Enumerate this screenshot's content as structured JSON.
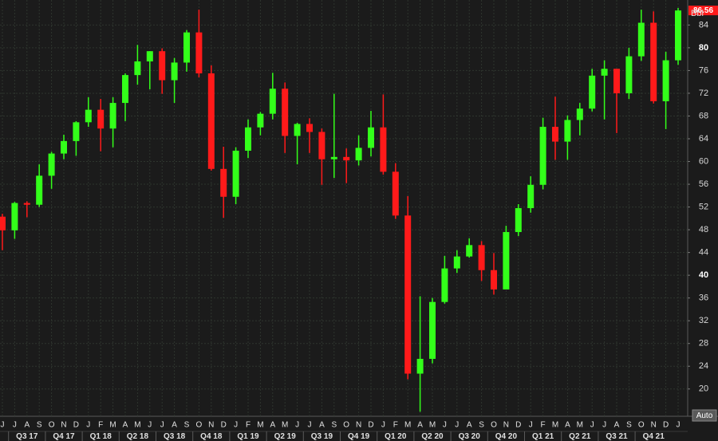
{
  "chart_data": {
    "type": "candlestick",
    "y_unit": "Bbl",
    "auto_button": "Auto",
    "categories": [
      "J",
      "J",
      "A",
      "S",
      "O",
      "N",
      "D",
      "J",
      "F",
      "M",
      "A",
      "M",
      "J",
      "J",
      "A",
      "S",
      "O",
      "N",
      "D",
      "J",
      "F",
      "M",
      "A",
      "M",
      "J",
      "J",
      "A",
      "S",
      "O",
      "N",
      "D",
      "J",
      "F",
      "M",
      "A",
      "M",
      "J",
      "J",
      "A",
      "S",
      "O",
      "N",
      "D",
      "J",
      "F",
      "M",
      "A",
      "M",
      "J",
      "J",
      "A",
      "S",
      "O",
      "N",
      "D",
      "J"
    ],
    "quarter_labels": [
      null,
      "Q3 17",
      null,
      null,
      "Q4 17",
      null,
      null,
      "Q1 18",
      null,
      null,
      "Q2 18",
      null,
      null,
      "Q3 18",
      null,
      null,
      "Q4 18",
      null,
      null,
      "Q1 19",
      null,
      null,
      "Q2 19",
      null,
      null,
      "Q3 19",
      null,
      null,
      "Q4 19",
      null,
      null,
      "Q1 20",
      null,
      null,
      "Q2 20",
      null,
      null,
      "Q3 20",
      null,
      null,
      "Q4 20",
      null,
      null,
      "Q1 21",
      null,
      null,
      "Q2 21",
      null,
      null,
      "Q3 21",
      null,
      null,
      "Q4 21",
      null,
      null,
      null
    ],
    "series": [
      {
        "up_color": "#33ff1a",
        "down_color": "#ff1a1a",
        "open": [
          50.3,
          47.9,
          52.7,
          52.4,
          57.5,
          61.4,
          63.6,
          66.9,
          69.1,
          65.8,
          70.3,
          75.2,
          77.6,
          79.4,
          74.3,
          77.4,
          82.7,
          75.5,
          58.7,
          53.8,
          61.9,
          66.0,
          68.4,
          72.8,
          64.5,
          66.6,
          65.2,
          60.4,
          60.8,
          60.2,
          62.4,
          66.0,
          58.2,
          50.5,
          22.7,
          25.3,
          35.3,
          41.2,
          43.3,
          45.3,
          40.9,
          37.5,
          47.6,
          51.8,
          55.9,
          66.1,
          63.5,
          67.3,
          69.3,
          75.1,
          76.3,
          72.0,
          78.5,
          84.4,
          70.6,
          77.8
        ],
        "high": [
          50.8,
          52.9,
          53.0,
          59.5,
          61.7,
          64.7,
          67.1,
          71.3,
          71.0,
          71.3,
          75.5,
          80.5,
          79.4,
          79.9,
          78.2,
          83.1,
          86.7,
          76.9,
          62.6,
          62.5,
          67.4,
          68.7,
          75.6,
          73.9,
          66.8,
          67.6,
          65.8,
          71.9,
          62.3,
          64.6,
          68.9,
          71.8,
          59.7,
          53.9,
          36.3,
          36.0,
          43.4,
          44.4,
          46.5,
          46.0,
          43.9,
          48.7,
          52.5,
          57.4,
          67.7,
          71.4,
          68.1,
          70.3,
          76.3,
          77.8,
          76.3,
          80.0,
          86.7,
          86.4,
          79.3,
          87.0
        ],
        "low": [
          44.4,
          46.4,
          50.2,
          52.0,
          55.2,
          60.4,
          61.0,
          66.1,
          61.8,
          62.5,
          67.1,
          73.5,
          72.7,
          71.9,
          70.3,
          75.8,
          74.8,
          58.4,
          50.1,
          52.5,
          60.6,
          64.6,
          67.4,
          61.5,
          59.5,
          61.5,
          55.9,
          57.1,
          56.2,
          59.3,
          60.9,
          57.7,
          49.9,
          21.7,
          16.0,
          24.5,
          35.0,
          40.4,
          43.1,
          39.0,
          36.6,
          37.5,
          46.9,
          51.0,
          55.1,
          60.3,
          60.3,
          64.6,
          68.8,
          67.4,
          65.0,
          71.0,
          77.7,
          70.2,
          65.7,
          77.0
        ],
        "close": [
          47.9,
          52.7,
          52.4,
          57.5,
          61.4,
          63.6,
          66.9,
          69.1,
          65.8,
          70.3,
          75.2,
          77.6,
          79.4,
          74.3,
          77.4,
          82.7,
          75.5,
          58.7,
          53.8,
          61.9,
          66.0,
          68.4,
          72.8,
          64.5,
          66.6,
          65.2,
          60.4,
          60.8,
          60.2,
          62.4,
          66.0,
          58.2,
          50.5,
          22.7,
          25.3,
          35.3,
          41.2,
          43.3,
          45.3,
          40.9,
          37.5,
          47.6,
          51.8,
          55.9,
          66.1,
          63.5,
          67.3,
          69.3,
          75.1,
          76.3,
          72.0,
          78.5,
          84.4,
          70.6,
          77.8,
          86.56
        ]
      }
    ],
    "ylim": [
      15.2,
      88.4
    ],
    "yticks": [
      20,
      24,
      28,
      32,
      36,
      40,
      44,
      48,
      52,
      56,
      60,
      64,
      68,
      72,
      76,
      80,
      84
    ],
    "grid": true,
    "last_price_color": "#ff1a1a"
  }
}
